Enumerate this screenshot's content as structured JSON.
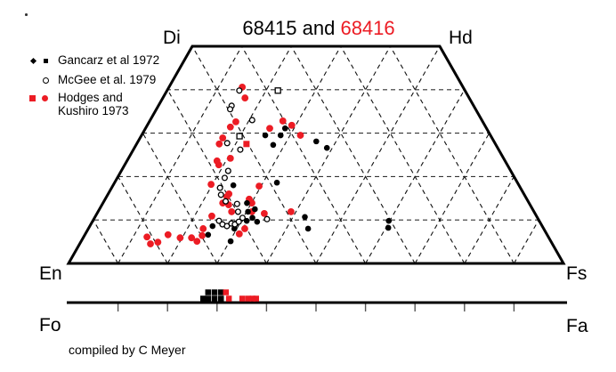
{
  "title": {
    "part_black": "68415 and ",
    "part_red": "68416"
  },
  "labels": {
    "di": "Di",
    "hd": "Hd",
    "en": "En",
    "fs": "Fs",
    "fo": "Fo",
    "fa": "Fa"
  },
  "legend": {
    "entries": [
      {
        "label": "Gancarz et al 1972",
        "color": "#000000",
        "markers": [
          "small-diamond",
          "small-square"
        ]
      },
      {
        "label": "McGee et al. 1979",
        "color": "#000000",
        "markers": [
          "open-circle"
        ]
      },
      {
        "label_line1": "Hodges and",
        "label_line2": "Kushiro 1973",
        "color": "#EC1C24",
        "markers": [
          "filled-square",
          "filled-circle"
        ]
      }
    ]
  },
  "caption": "compiled by C Meyer",
  "colors": {
    "red": "#EC1C24",
    "black": "#000000"
  },
  "chart_data": {
    "type": "scatter",
    "subtype": "pyroxene-quadrilateral-ternary",
    "title": "68415 and 68416",
    "axes": {
      "corners": {
        "top_left": "Di",
        "top_right": "Hd",
        "bottom_left": "En",
        "bottom_right": "Fs"
      },
      "wo_range": [
        0,
        50
      ],
      "grid_interval_mol_percent": 10,
      "grid_style": "dashed triangular mesh",
      "olivine_bar": {
        "left": "Fo",
        "right": "Fa",
        "range": [
          0,
          100
        ],
        "tick_interval": 10
      },
      "point_format": "fs = ferrosilite mol%, wo = wollastonite mol%, en = 100 - fs - wo; bar points: fa = fayalite mol%"
    },
    "series": [
      {
        "key": "hodges",
        "name": "Hodges and Kushiro 1973",
        "marker": "filled-circle",
        "color": "#EC1C24",
        "points": [
          {
            "fs": 14.8,
            "wo": 40.6
          },
          {
            "fs": 16.6,
            "wo": 38.1
          },
          {
            "fs": 17.5,
            "wo": 32.6
          },
          {
            "fs": 17.0,
            "wo": 31.4
          },
          {
            "fs": 25.1,
            "wo": 31.1
          },
          {
            "fs": 26.9,
            "wo": 32.8
          },
          {
            "fs": 29.2,
            "wo": 31.8
          },
          {
            "fs": 32.1,
            "wo": 29.5
          },
          {
            "fs": 16.7,
            "wo": 28.9
          },
          {
            "fs": 16.7,
            "wo": 27.5
          },
          {
            "fs": 20.6,
            "wo": 24.2
          },
          {
            "fs": 18.2,
            "wo": 23.6
          },
          {
            "fs": 19.0,
            "wo": 22.7
          },
          {
            "fs": 19.7,
            "wo": 18.2
          },
          {
            "fs": 29.6,
            "wo": 17.8
          },
          {
            "fs": 24.4,
            "wo": 16.0
          },
          {
            "fs": 24.2,
            "wo": 13.9
          },
          {
            "fs": 24.3,
            "wo": 15.4
          },
          {
            "fs": 29.1,
            "wo": 14.8
          },
          {
            "fs": 30.1,
            "wo": 13.9
          },
          {
            "fs": 25.6,
            "wo": 13.5
          },
          {
            "fs": 27.0,
            "wo": 11.9
          },
          {
            "fs": 31.1,
            "wo": 11.9
          },
          {
            "fs": 33.8,
            "wo": 11.5
          },
          {
            "fs": 39.0,
            "wo": 11.9
          },
          {
            "fs": 23.5,
            "wo": 10.9
          },
          {
            "fs": 31.6,
            "wo": 8.0
          },
          {
            "fs": 31.1,
            "wo": 6.8
          },
          {
            "fs": 23.2,
            "wo": 8.0
          },
          {
            "fs": 23.8,
            "wo": 6.4
          },
          {
            "fs": 21.9,
            "wo": 5.9
          },
          {
            "fs": 19.6,
            "wo": 5.9
          },
          {
            "fs": 16.8,
            "wo": 6.6
          },
          {
            "fs": 12.8,
            "wo": 6.1
          },
          {
            "fs": 14.3,
            "wo": 4.5
          },
          {
            "fs": 15.6,
            "wo": 4.9
          },
          {
            "fs": 23.4,
            "wo": 5.1
          }
        ]
      },
      {
        "key": "hodges_sq",
        "name": "Hodges and Kushiro 1973",
        "marker": "filled-square",
        "color": "#EC1C24",
        "points": [
          {
            "fs": 22.2,
            "wo": 27.5
          }
        ]
      },
      {
        "key": "gancarz",
        "name": "Gancarz et al 1972",
        "marker": "filled-circle",
        "color": "#000000",
        "points": [
          {
            "fs": 25.0,
            "wo": 29.5
          },
          {
            "fs": 28.1,
            "wo": 29.5
          },
          {
            "fs": 28.2,
            "wo": 31.1
          },
          {
            "fs": 27.7,
            "wo": 27.3
          },
          {
            "fs": 36.0,
            "wo": 28.1
          },
          {
            "fs": 38.9,
            "wo": 26.6
          },
          {
            "fs": 24.3,
            "wo": 18.0
          },
          {
            "fs": 32.8,
            "wo": 18.6
          },
          {
            "fs": 29.1,
            "wo": 13.9
          },
          {
            "fs": 31.4,
            "wo": 12.5
          },
          {
            "fs": 30.3,
            "wo": 11.9
          },
          {
            "fs": 31.9,
            "wo": 10.5
          },
          {
            "fs": 29.2,
            "wo": 9.2
          },
          {
            "fs": 31.1,
            "wo": 9.8
          },
          {
            "fs": 33.3,
            "wo": 9.6
          },
          {
            "fs": 29.5,
            "wo": 8.0
          },
          {
            "fs": 24.8,
            "wo": 8.6
          },
          {
            "fs": 24.9,
            "wo": 6.6
          },
          {
            "fs": 30.2,
            "wo": 5.1
          },
          {
            "fs": 42.4,
            "wo": 10.7
          },
          {
            "fs": 44.4,
            "wo": 8.0
          },
          {
            "fs": 59.8,
            "wo": 9.8
          },
          {
            "fs": 60.5,
            "wo": 8.2
          }
        ]
      },
      {
        "key": "mcgee",
        "name": "McGee et al. 1979",
        "marker": "open-circle",
        "color": "#000000",
        "points": [
          {
            "fs": 14.6,
            "wo": 39.8
          },
          {
            "fs": 14.8,
            "wo": 36.3
          },
          {
            "fs": 14.9,
            "wo": 35.5
          },
          {
            "fs": 20.6,
            "wo": 33.0
          },
          {
            "fs": 18.2,
            "wo": 27.7
          },
          {
            "fs": 21.6,
            "wo": 26.2
          },
          {
            "fs": 21.6,
            "wo": 21.3
          },
          {
            "fs": 21.7,
            "wo": 19.7
          },
          {
            "fs": 21.9,
            "wo": 17.4
          },
          {
            "fs": 22.9,
            "wo": 15.8
          },
          {
            "fs": 24.6,
            "wo": 14.3
          },
          {
            "fs": 27.2,
            "wo": 13.7
          },
          {
            "fs": 28.3,
            "wo": 11.9
          },
          {
            "fs": 29.9,
            "wo": 10.5
          },
          {
            "fs": 25.5,
            "wo": 9.8
          },
          {
            "fs": 26.6,
            "wo": 9.0
          },
          {
            "fs": 27.7,
            "wo": 8.6
          },
          {
            "fs": 28.3,
            "wo": 9.2
          },
          {
            "fs": 29.1,
            "wo": 9.0
          },
          {
            "fs": 29.6,
            "wo": 9.6
          },
          {
            "fs": 35.0,
            "wo": 10.2
          }
        ]
      },
      {
        "key": "mcgee_sq",
        "name": "McGee et al. 1979",
        "marker": "open-square",
        "color": "#000000",
        "points": [
          {
            "fs": 22.4,
            "wo": 39.8
          },
          {
            "fs": 19.9,
            "wo": 29.3
          }
        ]
      }
    ],
    "olivine_bar_series": [
      {
        "key": "gancarz_ol",
        "name": "Gancarz et al 1972",
        "marker": "filled-square",
        "color": "#000000",
        "points": [
          {
            "fa": 27.2,
            "row": 0
          },
          {
            "fa": 28.2,
            "row": 1
          },
          {
            "fa": 28.2,
            "row": 0
          },
          {
            "fa": 29.5,
            "row": 1
          },
          {
            "fa": 29.5,
            "row": 0
          },
          {
            "fa": 30.8,
            "row": 1
          },
          {
            "fa": 30.8,
            "row": 0
          }
        ]
      },
      {
        "key": "hodges_ol",
        "name": "Hodges and Kushiro 1973",
        "marker": "filled-square",
        "color": "#EC1C24",
        "points": [
          {
            "fa": 31.8,
            "row": 1
          },
          {
            "fa": 32.4,
            "row": 0
          },
          {
            "fa": 35.1,
            "row": 0
          },
          {
            "fa": 36.3,
            "row": 0
          },
          {
            "fa": 37.2,
            "row": 0
          },
          {
            "fa": 37.9,
            "row": 0
          }
        ]
      }
    ]
  }
}
